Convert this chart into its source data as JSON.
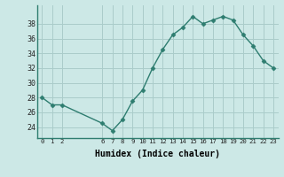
{
  "x": [
    0,
    1,
    2,
    6,
    7,
    8,
    9,
    10,
    11,
    12,
    13,
    14,
    15,
    16,
    17,
    18,
    19,
    20,
    21,
    22,
    23
  ],
  "y": [
    28,
    27,
    27,
    24.5,
    23.5,
    25,
    27.5,
    29,
    32,
    34.5,
    36.5,
    37.5,
    39,
    38,
    38.5,
    39,
    38.5,
    36.5,
    35,
    33,
    32
  ],
  "line_color": "#2e7d70",
  "marker_color": "#2e7d70",
  "bg_color": "#cce8e6",
  "grid_color": "#aaccca",
  "xlabel": "Humidex (Indice chaleur)",
  "ylim": [
    22.5,
    40.5
  ],
  "xlim": [
    -0.5,
    23.5
  ],
  "yticks": [
    24,
    26,
    28,
    30,
    32,
    34,
    36,
    38
  ],
  "xticks": [
    0,
    1,
    2,
    6,
    7,
    8,
    9,
    10,
    11,
    12,
    13,
    14,
    15,
    16,
    17,
    18,
    19,
    20,
    21,
    22,
    23
  ],
  "xtick_labels": [
    "0",
    "1",
    "2",
    "6",
    "7",
    "8",
    "9",
    "10",
    "11",
    "12",
    "13",
    "14",
    "15",
    "16",
    "17",
    "18",
    "19",
    "20",
    "21",
    "22",
    "23"
  ]
}
